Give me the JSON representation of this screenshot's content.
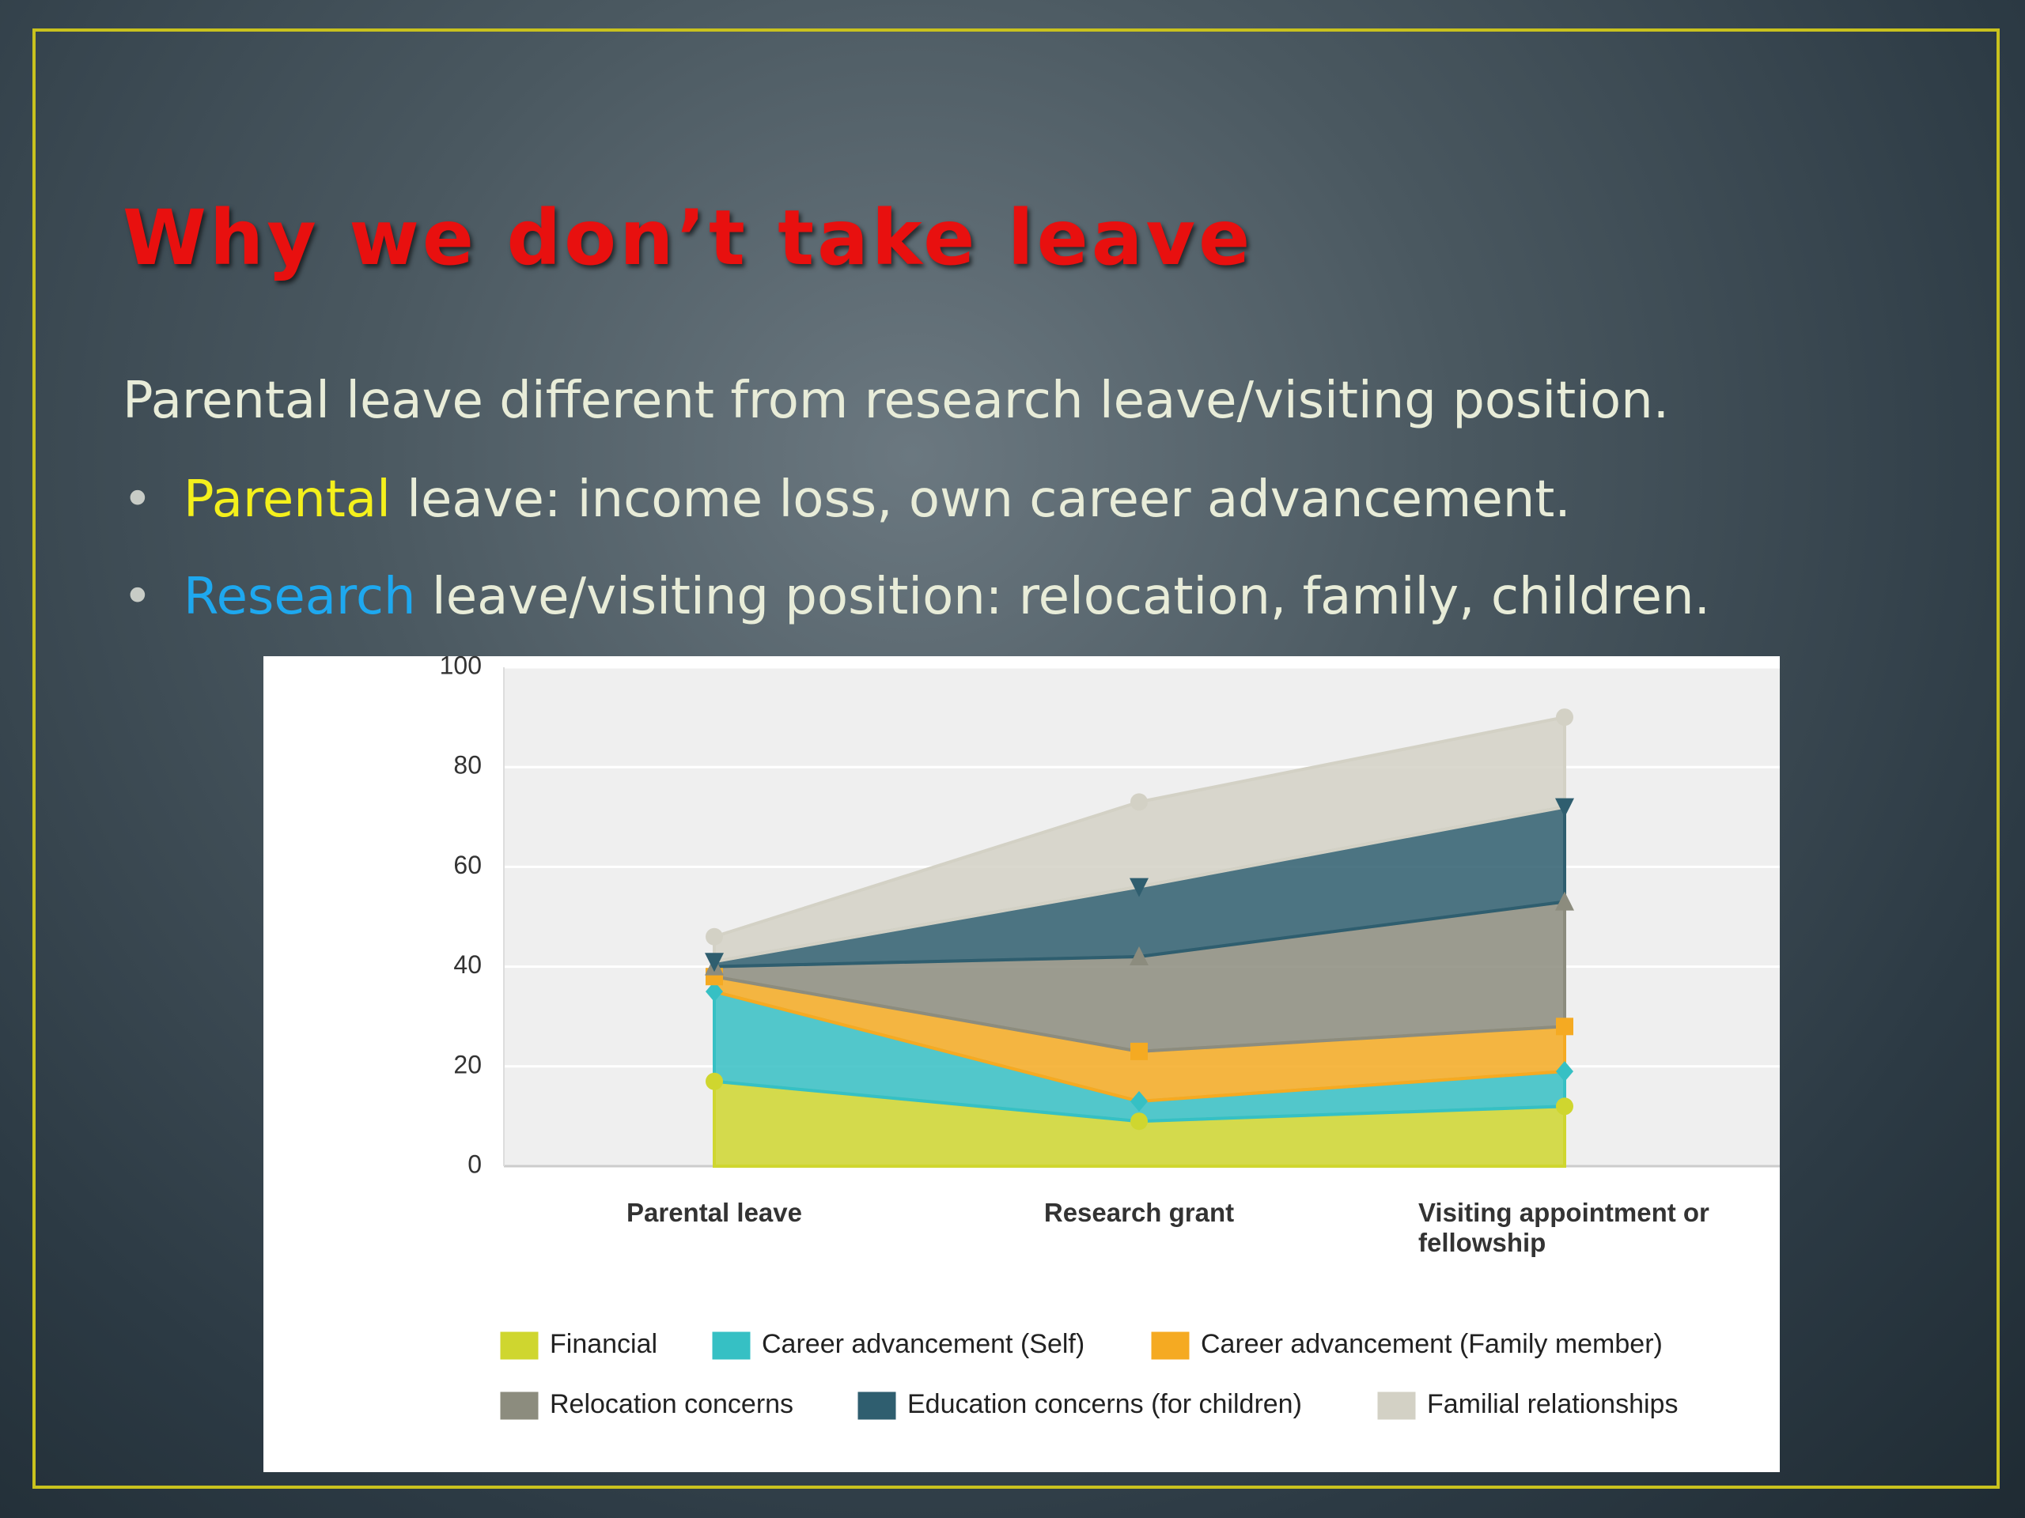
{
  "slide": {
    "title": "Why we don’t take leave",
    "intro": "Parental leave different from research leave/visiting position.",
    "bullets": [
      {
        "highlight": "Parental",
        "text": "leave: income loss, own career advancement."
      },
      {
        "highlight": "Research",
        "text": "leave/visiting position: relocation, family, children."
      }
    ]
  },
  "chart_data": {
    "type": "stacked-area",
    "categories": [
      "Parental leave",
      "Research grant",
      "Visiting appointment or fellowship"
    ],
    "series": [
      {
        "name": "Financial",
        "color": "#cfd62f",
        "marker": "circle",
        "values": [
          17,
          9,
          12
        ]
      },
      {
        "name": "Career advancement (Self)",
        "color": "#36c0c4",
        "marker": "diamond",
        "values": [
          18,
          4,
          7
        ]
      },
      {
        "name": "Career advancement (Family member)",
        "color": "#f5aa22",
        "marker": "square",
        "values": [
          3,
          10,
          9
        ]
      },
      {
        "name": "Relocation concerns",
        "color": "#8c8c7e",
        "marker": "triangle-up",
        "values": [
          2,
          19,
          25
        ]
      },
      {
        "name": "Education concerns (for children)",
        "color": "#2f5e6f",
        "marker": "triangle-down",
        "values": [
          1,
          14,
          19
        ]
      },
      {
        "name": "Familial relationships",
        "color": "#d3d1c5",
        "marker": "circle",
        "values": [
          5,
          17,
          18
        ]
      }
    ],
    "ylim": [
      0,
      100
    ],
    "yticks": [
      0,
      20,
      40,
      60,
      80,
      100
    ],
    "grid": true
  }
}
